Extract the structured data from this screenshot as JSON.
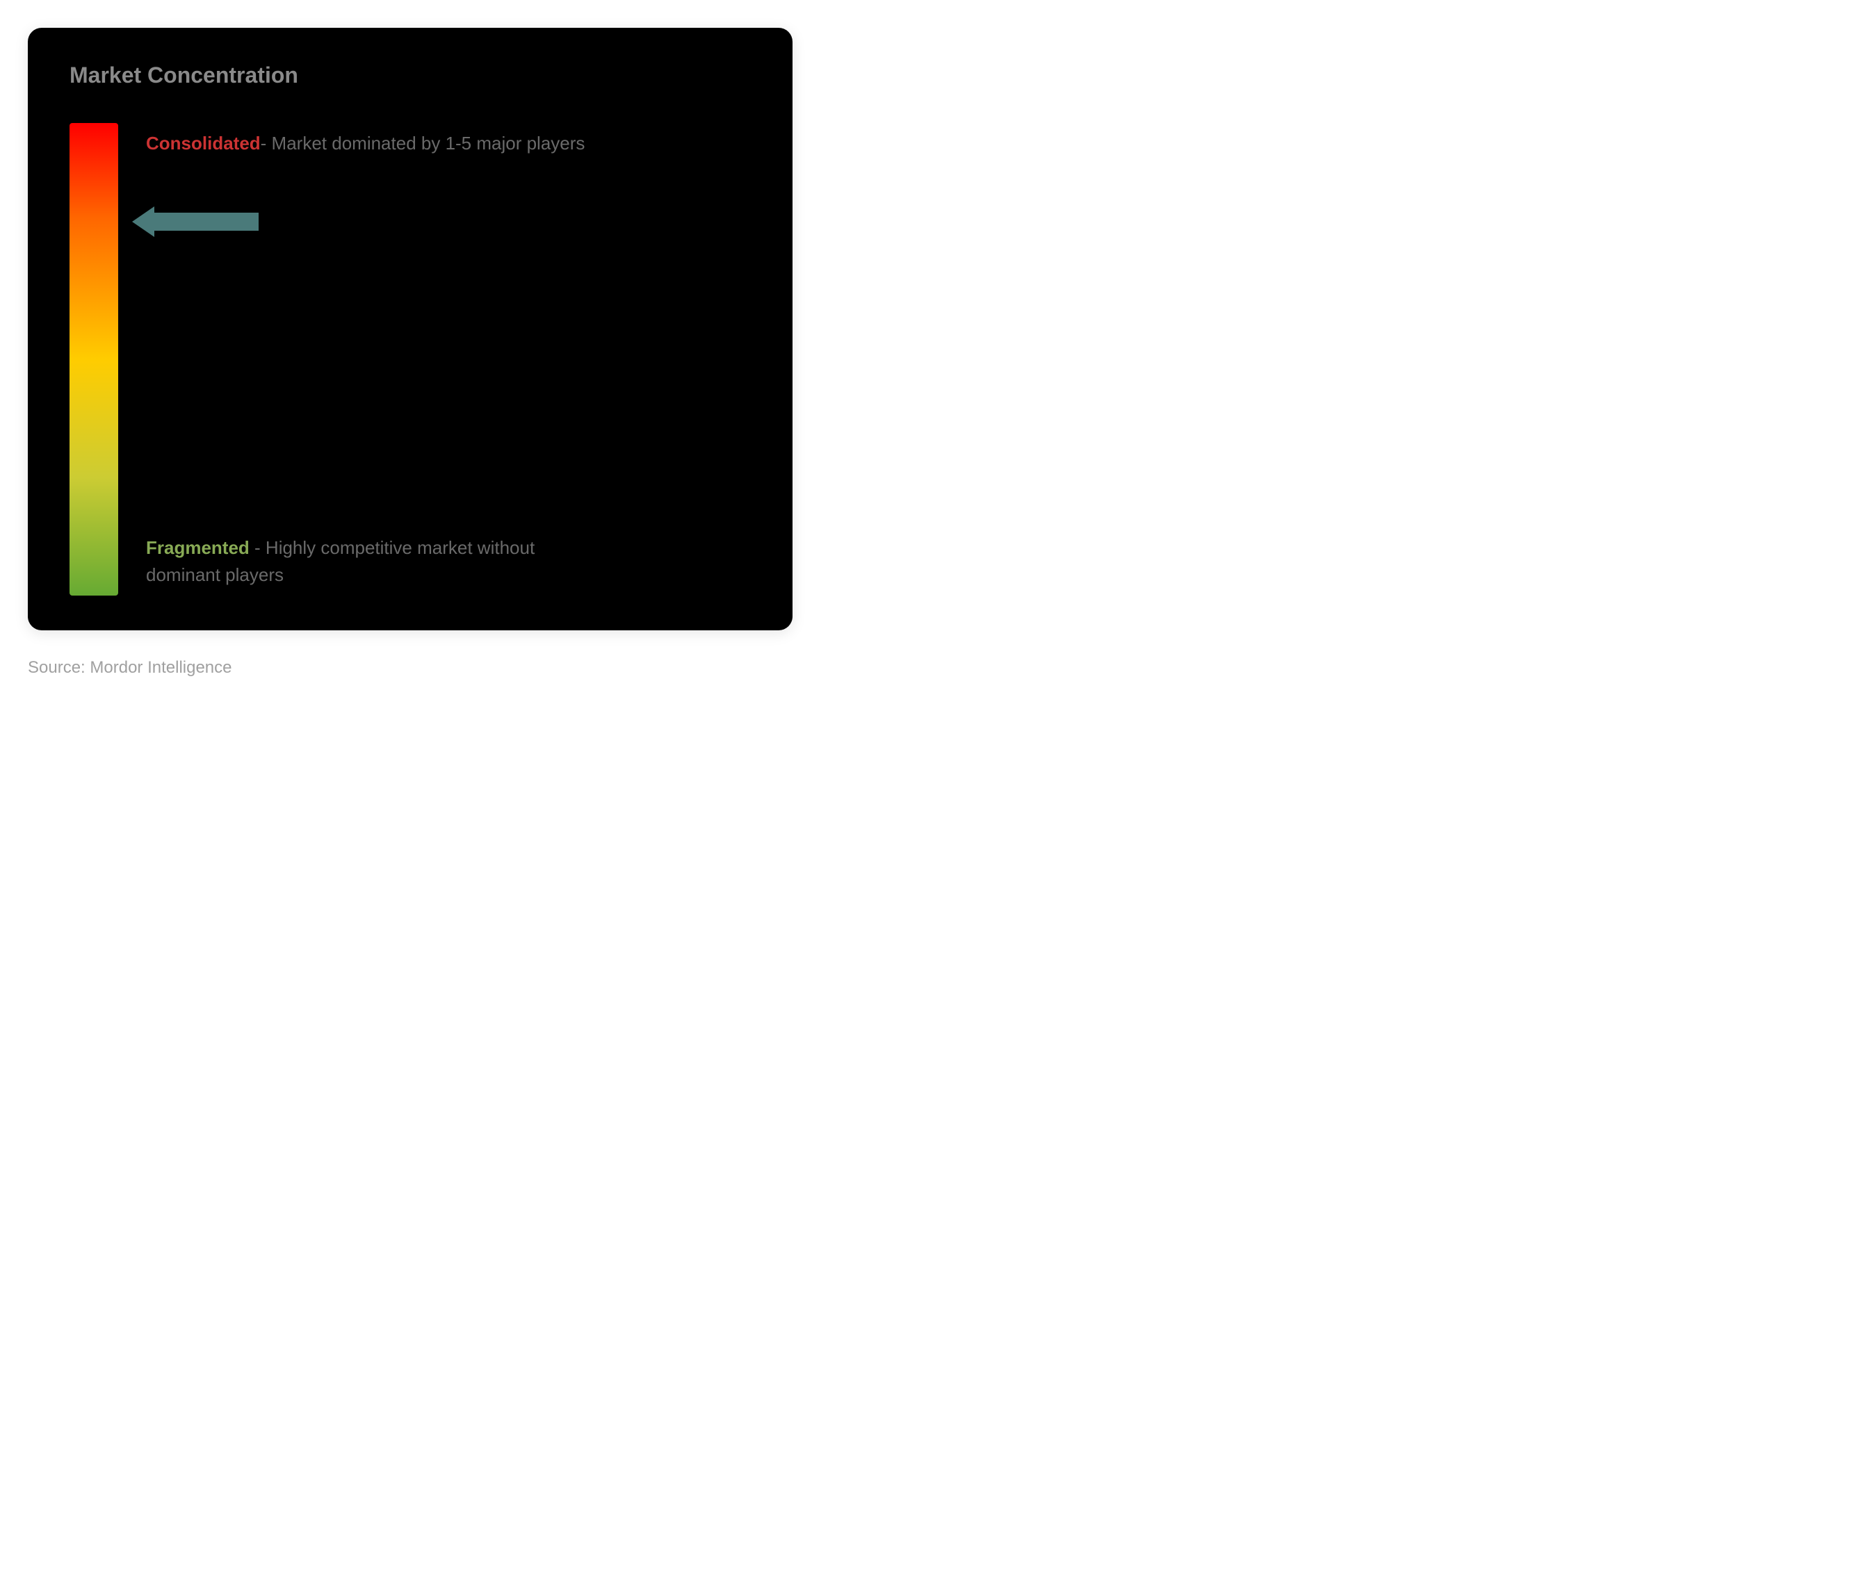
{
  "chart": {
    "title": "Market Concentration",
    "type": "gradient-scale",
    "gradient": {
      "top_color": "#ff0000",
      "upper_mid_color": "#ff6600",
      "mid_color": "#ffcc00",
      "lower_mid_color": "#cccc33",
      "bottom_color": "#66aa33"
    },
    "top_label": {
      "highlight": "Consolidated",
      "highlight_color": "#cc3333",
      "text": "- Market dominated by 1-5 major players"
    },
    "bottom_label": {
      "highlight": "Fragmented",
      "highlight_color": "#88aa55",
      "text": " - Highly competitive market without dominant players"
    },
    "arrow": {
      "color": "#4a7a7a",
      "position_percent": 18
    },
    "text_color": "#6a6a6a",
    "background_color": "#000000"
  },
  "source": {
    "label": "Source: ",
    "text": "Mordor Intelligence"
  }
}
